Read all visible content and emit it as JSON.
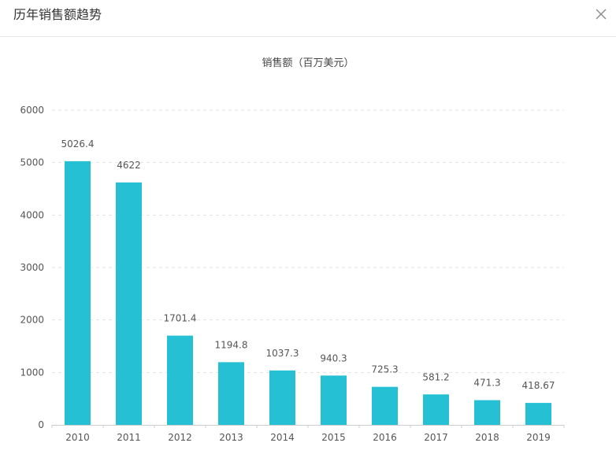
{
  "dialog": {
    "title": "历年销售额趋势",
    "close_icon": "close-icon"
  },
  "colors": {
    "bar": "#26c0d4",
    "grid": "#e4e4e4",
    "axis": "#cccccc"
  },
  "chart_data": {
    "type": "bar",
    "title": "销售额（百万美元）",
    "xlabel": "",
    "ylabel": "",
    "categories": [
      "2010",
      "2011",
      "2012",
      "2013",
      "2014",
      "2015",
      "2016",
      "2017",
      "2018",
      "2019"
    ],
    "values": [
      5026.4,
      4622,
      1701.4,
      1194.8,
      1037.3,
      940.3,
      725.3,
      581.2,
      471.3,
      418.67
    ],
    "value_labels": [
      "5026.4",
      "4622",
      "1701.4",
      "1194.8",
      "1037.3",
      "940.3",
      "725.3",
      "581.2",
      "471.3",
      "418.67"
    ],
    "ylim": [
      0,
      6000
    ],
    "yticks": [
      "0",
      "1000",
      "2000",
      "3000",
      "4000",
      "5000",
      "6000"
    ],
    "grid": true,
    "legend": "none"
  }
}
